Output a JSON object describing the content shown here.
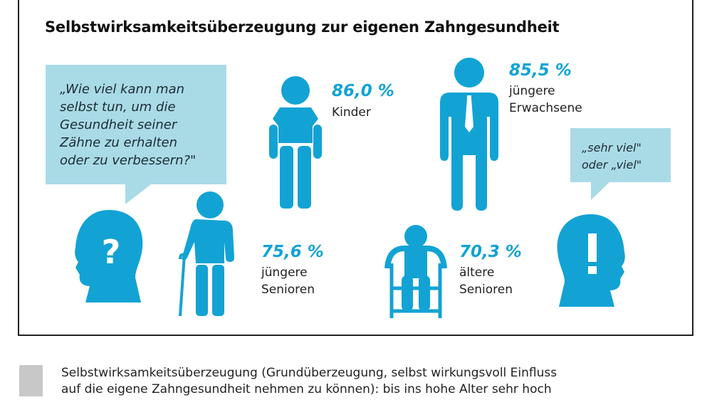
{
  "title": "Selbstwirksamkeitsüberzeugung zur eigenen Zahngesundheit",
  "question": [
    "„Wie viel kann man",
    "selbst tun, um die",
    "Gesundheit seiner",
    "Zähne zu erhalten",
    "oder zu verbessern?\""
  ],
  "answer": [
    "„sehr viel\"",
    "oder „viel\""
  ],
  "groups": [
    {
      "value": "86,0 %",
      "label": [
        "Kinder"
      ]
    },
    {
      "value": "85,5 %",
      "label": [
        "jüngere",
        "Erwachsene"
      ]
    },
    {
      "value": "75,6 %",
      "label": [
        "jüngere",
        "Senioren"
      ]
    },
    {
      "value": "70,3 %",
      "label": [
        "ältere",
        "Senioren"
      ]
    }
  ],
  "legend": [
    "Selbstwirksamkeitsüberzeugung (Grundüberzeugung, selbst wirkungsvoll Einfluss",
    "auf die eigene Zahngesundheit nehmen zu können): bis ins hohe Alter sehr hoch"
  ],
  "colors": {
    "accent": "#12a3d4",
    "bubble": "#a9dbe7",
    "legend": "#c8c8c8"
  }
}
